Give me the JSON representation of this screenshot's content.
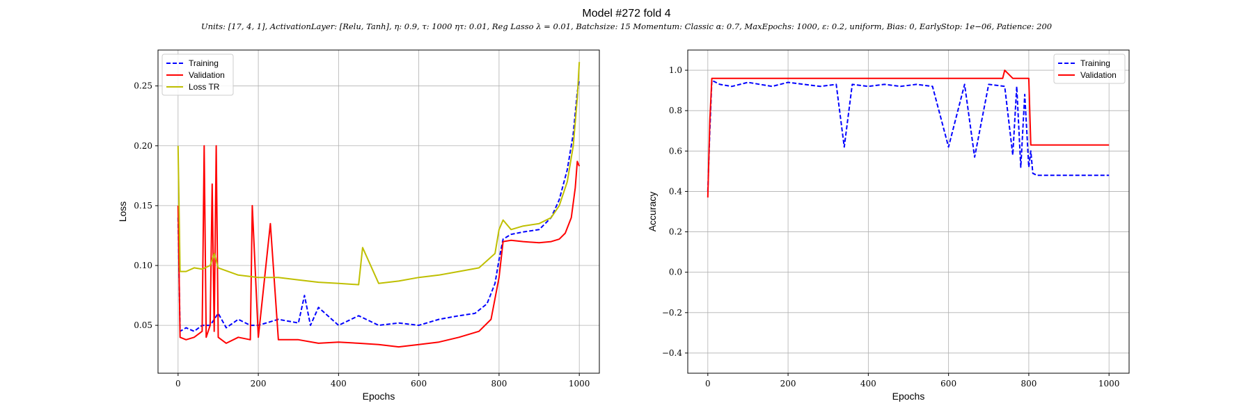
{
  "figure": {
    "title": "Model #272 fold 4",
    "subtitle": "Units: [17, 4, 1], ActivationLayer: [Relu, Tanh], η: 0.9, τ: 1000 ητ: 0.01, Reg Lasso λ = 0.01, Batchsize: 15 Momentum: Classic α: 0.7, MaxEpochs: 1000, ε: 0.2, uniform, Bias: 0, EarlyStop: 1e−06, Patience: 200"
  },
  "colors": {
    "training": "#0000ff",
    "validation": "#ff0000",
    "loss_tr": "#bfbf00",
    "grid": "#b0b0b0",
    "axes": "#000000"
  },
  "chart_data": [
    {
      "type": "line",
      "xlabel": "Epochs",
      "ylabel": "Loss",
      "xlim": [
        -50,
        1050
      ],
      "ylim": [
        0.01,
        0.28
      ],
      "xticks": [
        0,
        200,
        400,
        600,
        800,
        1000
      ],
      "yticks": [
        0.05,
        0.1,
        0.15,
        0.2,
        0.25
      ],
      "ytick_labels": [
        "0.05",
        "0.10",
        "0.15",
        "0.20",
        "0.25"
      ],
      "grid": true,
      "legend": "top-left",
      "series": [
        {
          "name": "Training",
          "style": "dashed",
          "color_key": "training",
          "x": [
            0,
            5,
            20,
            40,
            60,
            80,
            100,
            120,
            150,
            180,
            200,
            250,
            300,
            315,
            330,
            350,
            400,
            450,
            500,
            550,
            600,
            650,
            700,
            740,
            770,
            790,
            800,
            810,
            830,
            860,
            900,
            930,
            950,
            970,
            985,
            995,
            1000
          ],
          "y": [
            0.14,
            0.045,
            0.048,
            0.045,
            0.05,
            0.05,
            0.06,
            0.048,
            0.055,
            0.05,
            0.05,
            0.055,
            0.052,
            0.075,
            0.05,
            0.065,
            0.05,
            0.058,
            0.05,
            0.052,
            0.05,
            0.055,
            0.058,
            0.06,
            0.068,
            0.085,
            0.105,
            0.122,
            0.126,
            0.128,
            0.13,
            0.14,
            0.155,
            0.18,
            0.21,
            0.245,
            0.255
          ]
        },
        {
          "name": "Validation",
          "style": "solid",
          "color_key": "validation",
          "x": [
            0,
            5,
            20,
            40,
            60,
            65,
            70,
            80,
            85,
            90,
            95,
            100,
            120,
            150,
            180,
            185,
            200,
            230,
            250,
            300,
            350,
            400,
            450,
            500,
            550,
            600,
            650,
            700,
            750,
            780,
            800,
            810,
            830,
            860,
            900,
            930,
            950,
            965,
            980,
            990,
            995,
            1000
          ],
          "y": [
            0.15,
            0.04,
            0.038,
            0.04,
            0.045,
            0.2,
            0.04,
            0.05,
            0.168,
            0.045,
            0.2,
            0.04,
            0.035,
            0.04,
            0.038,
            0.15,
            0.04,
            0.135,
            0.038,
            0.038,
            0.035,
            0.036,
            0.035,
            0.034,
            0.032,
            0.034,
            0.036,
            0.04,
            0.045,
            0.055,
            0.09,
            0.12,
            0.121,
            0.12,
            0.119,
            0.12,
            0.122,
            0.127,
            0.14,
            0.165,
            0.187,
            0.183
          ]
        },
        {
          "name": "Loss TR",
          "style": "solid",
          "color_key": "loss_tr",
          "x": [
            0,
            5,
            20,
            40,
            60,
            80,
            90,
            100,
            150,
            200,
            250,
            300,
            350,
            400,
            450,
            460,
            500,
            550,
            600,
            650,
            700,
            750,
            790,
            800,
            810,
            830,
            860,
            900,
            930,
            950,
            970,
            985,
            995,
            1000
          ],
          "y": [
            0.2,
            0.095,
            0.095,
            0.098,
            0.097,
            0.1,
            0.11,
            0.098,
            0.092,
            0.09,
            0.09,
            0.088,
            0.086,
            0.085,
            0.084,
            0.115,
            0.085,
            0.087,
            0.09,
            0.092,
            0.095,
            0.098,
            0.11,
            0.13,
            0.138,
            0.13,
            0.133,
            0.135,
            0.14,
            0.15,
            0.17,
            0.2,
            0.24,
            0.27
          ]
        }
      ]
    },
    {
      "type": "line",
      "xlabel": "Epochs",
      "ylabel": "Accuracy",
      "xlim": [
        -50,
        1050
      ],
      "ylim": [
        -0.5,
        1.1
      ],
      "xticks": [
        0,
        200,
        400,
        600,
        800,
        1000
      ],
      "yticks": [
        -0.4,
        -0.2,
        0.0,
        0.2,
        0.4,
        0.6,
        0.8,
        1.0
      ],
      "ytick_labels": [
        "−0.4",
        "−0.2",
        "0.0",
        "0.2",
        "0.4",
        "0.6",
        "0.8",
        "1.0"
      ],
      "grid": true,
      "legend": "top-right",
      "series": [
        {
          "name": "Training",
          "style": "dashed",
          "color_key": "training",
          "x": [
            0,
            5,
            10,
            30,
            60,
            100,
            130,
            160,
            200,
            240,
            280,
            320,
            340,
            360,
            400,
            440,
            480,
            520,
            560,
            600,
            640,
            665,
            700,
            740,
            760,
            770,
            780,
            790,
            800,
            805,
            810,
            820,
            900,
            1000
          ],
          "y": [
            0.4,
            0.7,
            0.95,
            0.93,
            0.92,
            0.94,
            0.93,
            0.92,
            0.94,
            0.93,
            0.92,
            0.93,
            0.62,
            0.93,
            0.92,
            0.93,
            0.92,
            0.93,
            0.92,
            0.62,
            0.93,
            0.57,
            0.93,
            0.92,
            0.58,
            0.92,
            0.52,
            0.88,
            0.52,
            0.6,
            0.49,
            0.48,
            0.48,
            0.48
          ]
        },
        {
          "name": "Validation",
          "style": "solid",
          "color_key": "validation",
          "x": [
            0,
            5,
            10,
            30,
            60,
            100,
            130,
            160,
            200,
            240,
            280,
            320,
            340,
            360,
            400,
            440,
            480,
            520,
            560,
            600,
            640,
            680,
            700,
            735,
            740,
            760,
            780,
            790,
            800,
            805,
            820,
            900,
            1000
          ],
          "y": [
            0.37,
            0.75,
            0.96,
            0.96,
            0.96,
            0.96,
            0.96,
            0.96,
            0.96,
            0.96,
            0.96,
            0.96,
            0.96,
            0.96,
            0.96,
            0.96,
            0.96,
            0.96,
            0.96,
            0.96,
            0.96,
            0.96,
            0.96,
            0.96,
            1.0,
            0.96,
            0.96,
            0.96,
            0.96,
            0.63,
            0.63,
            0.63,
            0.63
          ]
        }
      ]
    }
  ]
}
